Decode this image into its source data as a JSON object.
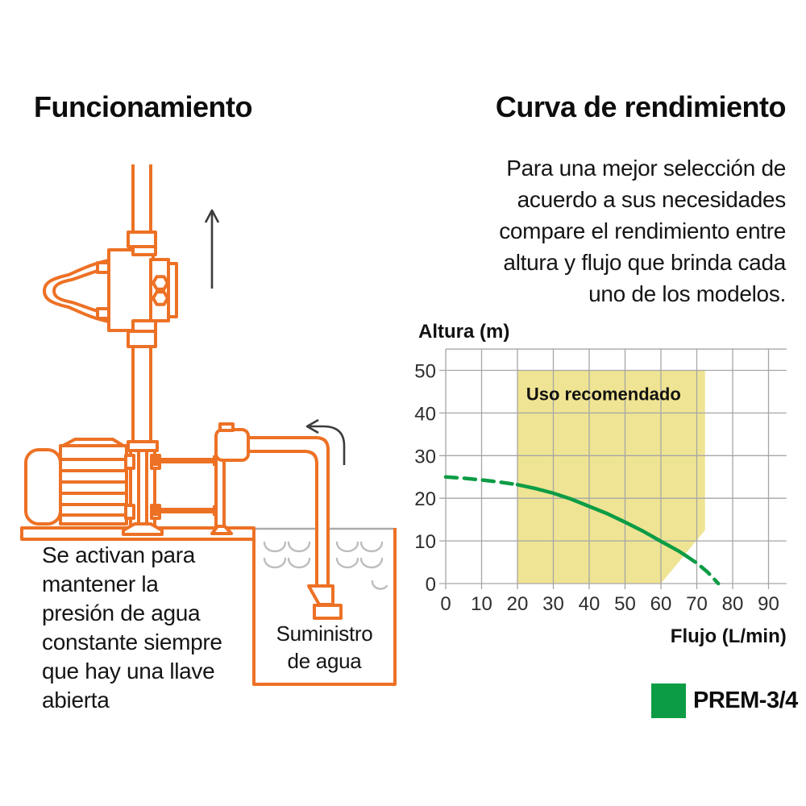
{
  "left": {
    "title": "Funcionamiento",
    "caption": {
      "lines": [
        "Se activan para",
        "mantener la",
        "presión de agua",
        "constante siempre",
        "que hay una llave",
        "abierta"
      ]
    },
    "tank_label": {
      "lines": [
        "Suministro",
        "de agua"
      ]
    }
  },
  "right": {
    "title": "Curva de rendimiento",
    "intro": {
      "lines": [
        "Para una mejor selección de",
        "acuerdo a sus necesidades",
        "compare el rendimiento entre",
        "altura y flujo que brinda cada",
        "uno de los modelos."
      ]
    }
  },
  "chart_data": {
    "type": "line",
    "xlabel": "Flujo (L/min)",
    "ylabel": "Altura (m)",
    "xlim": [
      0,
      95
    ],
    "ylim": [
      0,
      55
    ],
    "xticks": [
      0,
      10,
      20,
      30,
      40,
      50,
      60,
      70,
      80,
      90
    ],
    "yticks": [
      0,
      10,
      20,
      30,
      40,
      50
    ],
    "grid": true,
    "series": [
      {
        "name": "PREM-3/4",
        "color": "#0C9C45",
        "segments": [
          {
            "style": "dashed",
            "points": [
              [
                0,
                25
              ],
              [
                5,
                24.7
              ],
              [
                10,
                24.3
              ],
              [
                15,
                23.8
              ],
              [
                20,
                23.2
              ]
            ]
          },
          {
            "style": "solid",
            "points": [
              [
                20,
                23.2
              ],
              [
                25,
                22.3
              ],
              [
                30,
                21.2
              ],
              [
                35,
                19.8
              ],
              [
                40,
                18.1
              ],
              [
                45,
                16.4
              ],
              [
                50,
                14.4
              ],
              [
                55,
                12.3
              ],
              [
                60,
                9.9
              ],
              [
                65,
                7.6
              ],
              [
                67,
                6.5
              ]
            ]
          },
          {
            "style": "dashed",
            "points": [
              [
                67,
                6.5
              ],
              [
                70,
                4.8
              ],
              [
                73,
                2.7
              ],
              [
                76,
                0
              ]
            ]
          }
        ]
      }
    ],
    "recommended_region": {
      "label": "Uso recomendado",
      "color": "#EFE493",
      "polygon": [
        [
          20,
          0
        ],
        [
          20,
          50
        ],
        [
          72.3,
          50
        ],
        [
          72.3,
          12.5
        ],
        [
          60,
          0
        ]
      ]
    },
    "legend": {
      "label": "PREM-3/4",
      "color": "#0C9C45",
      "position": "bottom-right"
    }
  },
  "colors": {
    "orange": "#ED7125",
    "green": "#0C9C45",
    "yellow": "#EFE493",
    "grid": "#A6A6A6",
    "arrow": "#3C3C3C",
    "wave": "#BDBDBD",
    "text": "#111111"
  }
}
